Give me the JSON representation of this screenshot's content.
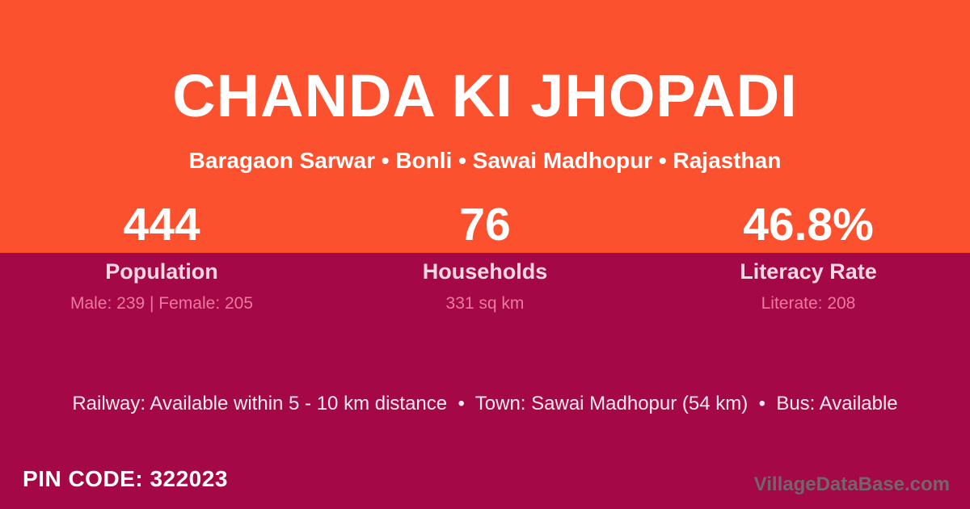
{
  "colors": {
    "top_background": "#FB512F",
    "bottom_background": "#A40846",
    "title_text": "#FFFFFF",
    "stat_label_text": "#F9D8E3",
    "stat_detail_text": "#EC79A0",
    "info_text": "#F9E9EF",
    "watermark_text": "#6E6E73"
  },
  "header": {
    "title": "CHANDA KI JHOPADI",
    "subtitle": "Baragaon Sarwar • Bonli • Sawai Madhopur • Rajasthan"
  },
  "stats": [
    {
      "value": "444",
      "label": "Population",
      "detail": "Male: 239 | Female: 205"
    },
    {
      "value": "76",
      "label": "Households",
      "detail": "331 sq km"
    },
    {
      "value": "46.8%",
      "label": "Literacy Rate",
      "detail": "Literate: 208"
    }
  ],
  "info_line": "Railway: Available within 5 - 10 km distance  •  Town: Sawai Madhopur (54 km)  •  Bus: Available",
  "footer": {
    "pin_code": "PIN CODE: 322023",
    "watermark": "VillageDataBase.com"
  }
}
